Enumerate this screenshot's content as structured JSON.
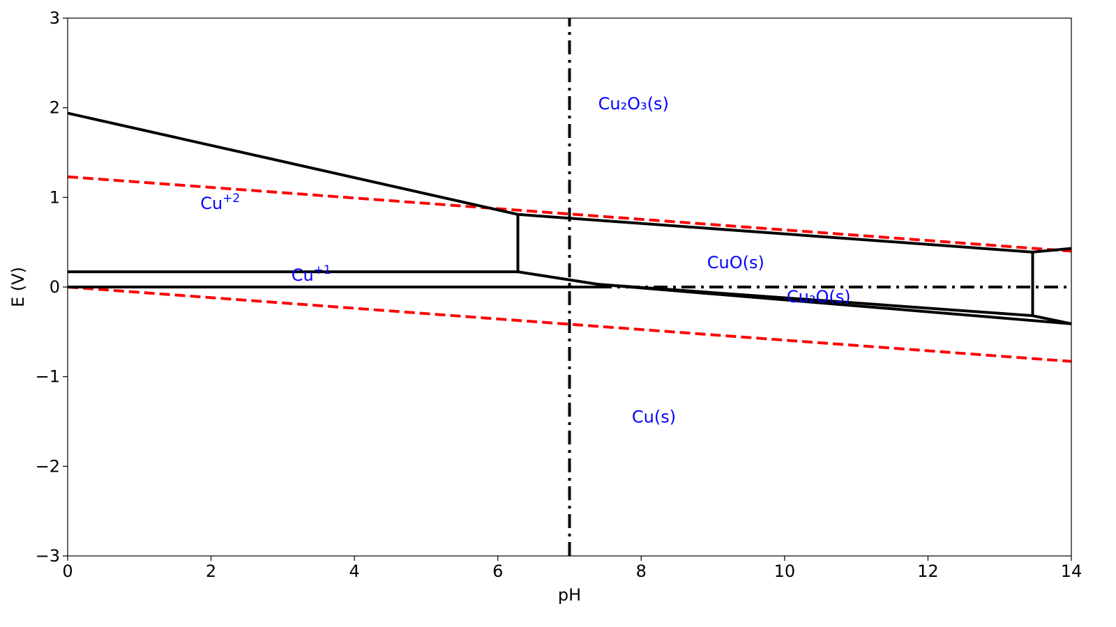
{
  "chart_data": {
    "type": "line",
    "title": "",
    "xlabel": "pH",
    "ylabel": "E (V)",
    "xlim": [
      0,
      14
    ],
    "ylim": [
      -3,
      3
    ],
    "xticks": [
      0,
      2,
      4,
      6,
      8,
      10,
      12,
      14
    ],
    "yticks": [
      -3,
      -2,
      -1,
      0,
      1,
      2,
      3
    ],
    "ytick_labels": [
      "−3",
      "−2",
      "−1",
      "0",
      "1",
      "2",
      "3"
    ],
    "grid": false,
    "colors": {
      "boundary": "#000000",
      "water": "#ff0000",
      "label": "#0000ff"
    },
    "series": [
      {
        "style": "solid",
        "x": [
          0,
          6.28
        ],
        "y": [
          1.94,
          0.81
        ]
      },
      {
        "style": "solid",
        "x": [
          6.28,
          13.46
        ],
        "y": [
          0.81,
          0.39
        ]
      },
      {
        "style": "solid",
        "x": [
          13.46,
          14
        ],
        "y": [
          0.39,
          0.43
        ]
      },
      {
        "style": "solid",
        "x": [
          6.28,
          6.28
        ],
        "y": [
          0.81,
          0.17
        ]
      },
      {
        "style": "solid",
        "x": [
          0,
          6.28
        ],
        "y": [
          0.17,
          0.17
        ]
      },
      {
        "style": "solid",
        "x": [
          6.28,
          7.4
        ],
        "y": [
          0.17,
          0.03
        ]
      },
      {
        "style": "solid",
        "x": [
          0,
          7.4
        ],
        "y": [
          0.0,
          0.0
        ]
      },
      {
        "style": "solid",
        "x": [
          7.4,
          13.46
        ],
        "y": [
          0.03,
          -0.32
        ]
      },
      {
        "style": "solid",
        "x": [
          7.4,
          14
        ],
        "y": [
          0.03,
          -0.41
        ]
      },
      {
        "style": "solid",
        "x": [
          13.46,
          13.46
        ],
        "y": [
          0.39,
          -0.32
        ]
      },
      {
        "style": "solid",
        "x": [
          13.46,
          14
        ],
        "y": [
          -0.32,
          -0.41
        ]
      },
      {
        "style": "dashed",
        "x": [
          0,
          14
        ],
        "y": [
          1.23,
          0.4
        ]
      },
      {
        "style": "dashed",
        "x": [
          0,
          14
        ],
        "y": [
          0.0,
          -0.83
        ]
      },
      {
        "style": "dashdot",
        "x": [
          7,
          7
        ],
        "y": [
          -3,
          3
        ]
      },
      {
        "style": "dashdot",
        "x": [
          0,
          14
        ],
        "y": [
          0,
          0
        ]
      }
    ],
    "annotations": [
      {
        "base": "Cu",
        "sup": "+2",
        "x": 1.85,
        "y": 0.87
      },
      {
        "base": "Cu",
        "sup": "+1",
        "x": 3.12,
        "y": 0.07
      },
      {
        "text": "Cu₂O₃(s)",
        "x": 7.4,
        "y": 1.98
      },
      {
        "text": "CuO(s)",
        "x": 8.92,
        "y": 0.21
      },
      {
        "text": "Cu₂O(s)",
        "x": 10.03,
        "y": -0.17
      },
      {
        "text": "Cu(s)",
        "x": 7.87,
        "y": -1.51
      }
    ]
  }
}
